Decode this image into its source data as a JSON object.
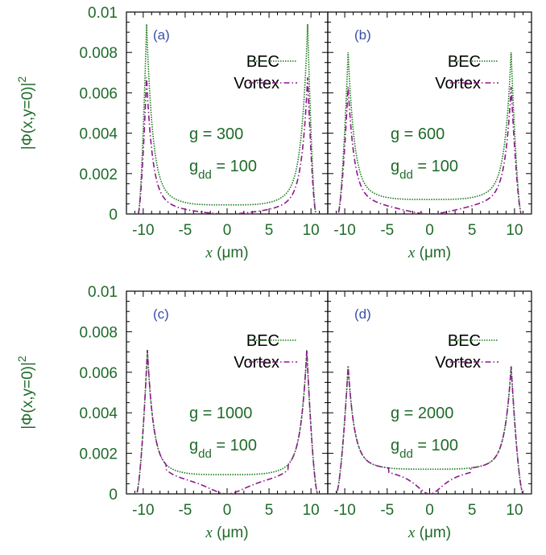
{
  "colors": {
    "bec": "#1a7a1a",
    "vortex": "#8b1a8b",
    "text": "#1f6b2a",
    "panel_label": "#3a4fa8"
  },
  "chart_data": [
    {
      "panel": "(a)",
      "type": "line",
      "xlim": [
        -12,
        12
      ],
      "ylim": [
        0,
        0.01
      ],
      "xticks": [
        "-10",
        "-5",
        "0",
        "5",
        "10"
      ],
      "yticks": [
        "0",
        "0.002",
        "0.004",
        "0.006",
        "0.008",
        "0.01"
      ],
      "xlabel_sym": "x",
      "xlabel_unit": " (μm)",
      "ylabel": "|Φ(x,y=0)|",
      "ylabel_sup": "2",
      "legend": [
        "BEC",
        "Vortex"
      ],
      "g_text": "g = 300",
      "gdd_prefix": "g",
      "gdd_sub": "dd",
      "gdd_suffix": " = 100",
      "params": {
        "edge": 10.6,
        "peak_x": 9.6,
        "peak_y": 0.0094,
        "center_y": 0.00045,
        "core": 6.0
      },
      "series": [
        {
          "name": "BEC",
          "style": "dotted"
        },
        {
          "name": "Vortex",
          "style": "dashdot"
        }
      ]
    },
    {
      "panel": "(b)",
      "type": "line",
      "xlim": [
        -12,
        12
      ],
      "ylim": [
        0,
        0.01
      ],
      "xticks": [
        "-10",
        "-5",
        "0",
        "5",
        "10"
      ],
      "yticks": [],
      "xlabel_sym": "x",
      "xlabel_unit": " (μm)",
      "ylabel": "",
      "ylabel_sup": "",
      "legend": [
        "BEC",
        "Vortex"
      ],
      "g_text": "g = 600",
      "gdd_prefix": "g",
      "gdd_sub": "dd",
      "gdd_suffix": " = 100",
      "params": {
        "edge": 10.8,
        "peak_x": 9.6,
        "peak_y": 0.008,
        "center_y": 0.00072,
        "core": 5.0
      },
      "series": [
        {
          "name": "BEC",
          "style": "dotted"
        },
        {
          "name": "Vortex",
          "style": "dashdot"
        }
      ]
    },
    {
      "panel": "(c)",
      "type": "line",
      "xlim": [
        -12,
        12
      ],
      "ylim": [
        0,
        0.01
      ],
      "xticks": [
        "-10",
        "-5",
        "0",
        "5",
        "10"
      ],
      "yticks": [
        "0",
        "0.002",
        "0.004",
        "0.006",
        "0.008",
        "0.01"
      ],
      "xlabel_sym": "x",
      "xlabel_unit": " (μm)",
      "ylabel": "|Φ(x,y=0)|",
      "ylabel_sup": "2",
      "legend": [
        "BEC",
        "Vortex"
      ],
      "g_text": "g = 1000",
      "gdd_prefix": "g",
      "gdd_sub": "dd",
      "gdd_suffix": " = 100",
      "params": {
        "edge": 10.8,
        "peak_x": 9.5,
        "peak_y": 0.0071,
        "center_y": 0.00095,
        "core": 3.3
      },
      "series": [
        {
          "name": "BEC",
          "style": "dotted"
        },
        {
          "name": "Vortex",
          "style": "dashdot"
        }
      ]
    },
    {
      "panel": "(d)",
      "type": "line",
      "xlim": [
        -12,
        12
      ],
      "ylim": [
        0,
        0.01
      ],
      "xticks": [
        "-10",
        "-5",
        "0",
        "5",
        "10"
      ],
      "yticks": [],
      "xlabel_sym": "x",
      "xlabel_unit": " (μm)",
      "ylabel": "",
      "ylabel_sup": "",
      "legend": [
        "BEC",
        "Vortex"
      ],
      "g_text": "g = 2000",
      "gdd_prefix": "g",
      "gdd_sub": "dd",
      "gdd_suffix": " = 100",
      "params": {
        "edge": 11.0,
        "peak_x": 9.6,
        "peak_y": 0.0063,
        "center_y": 0.00122,
        "core": 2.2
      },
      "series": [
        {
          "name": "BEC",
          "style": "dotted"
        },
        {
          "name": "Vortex",
          "style": "dashdot"
        }
      ]
    }
  ]
}
